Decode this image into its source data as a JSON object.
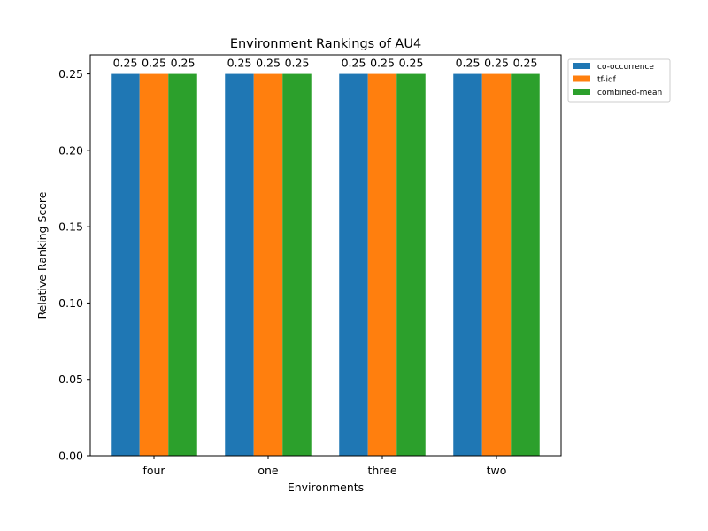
{
  "chart_data": {
    "type": "bar",
    "title": "Environment Rankings of AU4",
    "xlabel": "Environments",
    "ylabel": "Relative Ranking Score",
    "categories": [
      "four",
      "one",
      "three",
      "two"
    ],
    "series": [
      {
        "name": "co-occurrence",
        "color": "#1f77b4",
        "values": [
          0.25,
          0.25,
          0.25,
          0.25
        ]
      },
      {
        "name": "tf-idf",
        "color": "#ff7f0e",
        "values": [
          0.25,
          0.25,
          0.25,
          0.25
        ]
      },
      {
        "name": "combined-mean",
        "color": "#2ca02c",
        "values": [
          0.25,
          0.25,
          0.25,
          0.25
        ]
      }
    ],
    "data_labels": [
      [
        "0.25",
        "0.25",
        "0.25",
        "0.25"
      ],
      [
        "0.25",
        "0.25",
        "0.25",
        "0.25"
      ],
      [
        "0.25",
        "0.25",
        "0.25",
        "0.25"
      ]
    ],
    "ylim": [
      0,
      0.2625
    ],
    "yticks": [
      0.0,
      0.05,
      0.1,
      0.15,
      0.2,
      0.25
    ],
    "ytick_labels": [
      "0.00",
      "0.05",
      "0.10",
      "0.15",
      "0.20",
      "0.25"
    ],
    "grid": false,
    "legend": "outside-top-right"
  }
}
